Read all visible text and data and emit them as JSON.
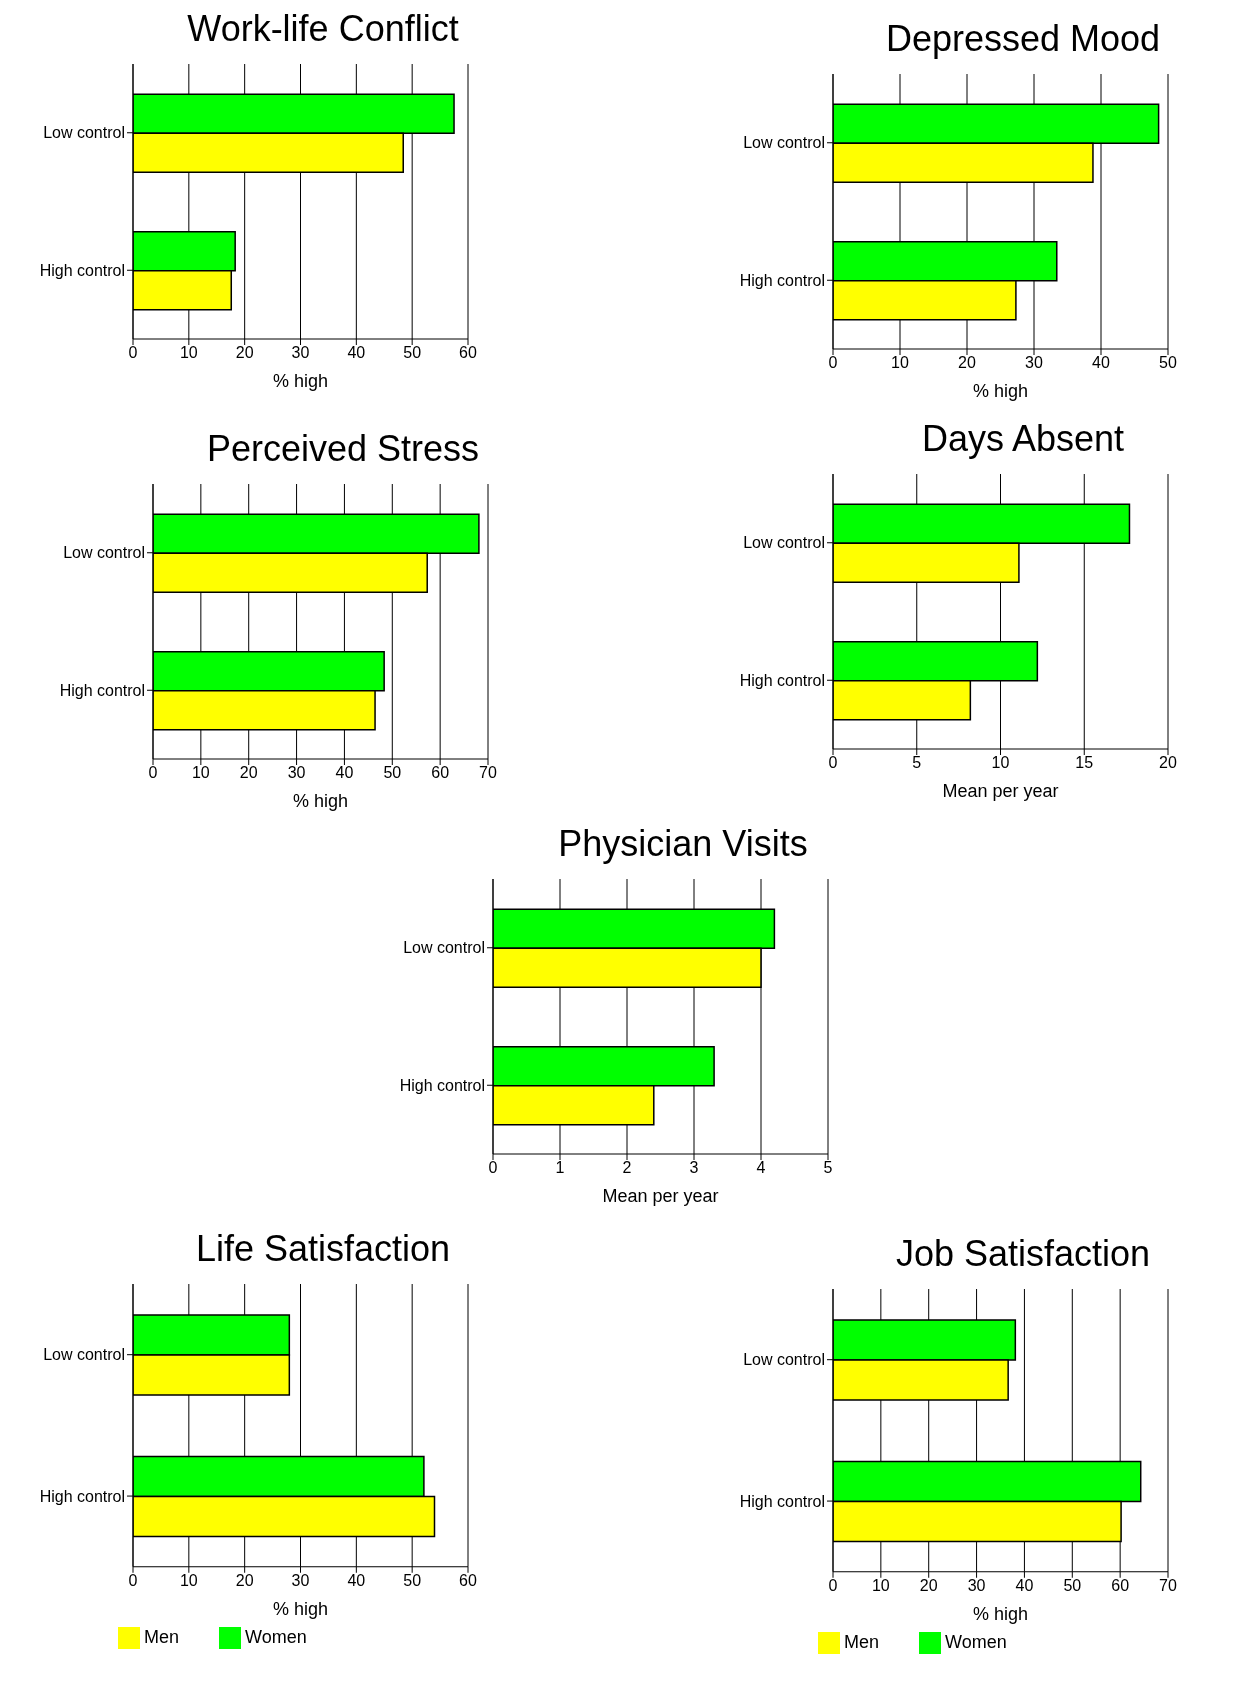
{
  "chart_data": [
    {
      "type": "bar",
      "orientation": "horizontal",
      "title": "Work-life Conflict",
      "categories": [
        "Low control",
        "High control"
      ],
      "series": [
        {
          "color": "#00ff00",
          "values": [
            57.5,
            18.3
          ]
        },
        {
          "color": "#ffff00",
          "values": [
            48.4,
            17.6
          ]
        }
      ],
      "xlabel": "% high",
      "xlim": [
        0,
        60
      ],
      "xticks": [
        0,
        10,
        20,
        30,
        40,
        50,
        60
      ],
      "grid": "x",
      "legend": false
    },
    {
      "type": "bar",
      "orientation": "horizontal",
      "title": "Depressed Mood",
      "categories": [
        "Low control",
        "High control"
      ],
      "series": [
        {
          "color": "#00ff00",
          "values": [
            48.6,
            33.4
          ]
        },
        {
          "color": "#ffff00",
          "values": [
            38.8,
            27.3
          ]
        }
      ],
      "xlabel": "% high",
      "xlim": [
        0,
        50
      ],
      "xticks": [
        0,
        10,
        20,
        30,
        40,
        50
      ],
      "grid": "x",
      "legend": false
    },
    {
      "type": "bar",
      "orientation": "horizontal",
      "title": "Perceived Stress",
      "categories": [
        "Low control",
        "High control"
      ],
      "series": [
        {
          "color": "#00ff00",
          "values": [
            68.1,
            48.3
          ]
        },
        {
          "color": "#ffff00",
          "values": [
            57.3,
            46.4
          ]
        }
      ],
      "xlabel": "% high",
      "xlim": [
        0,
        70
      ],
      "xticks": [
        0,
        10,
        20,
        30,
        40,
        50,
        60,
        70
      ],
      "grid": "x",
      "legend": false
    },
    {
      "type": "bar",
      "orientation": "horizontal",
      "title": "Days Absent",
      "categories": [
        "Low control",
        "High control"
      ],
      "series": [
        {
          "color": "#00ff00",
          "values": [
            17.7,
            12.2
          ]
        },
        {
          "color": "#ffff00",
          "values": [
            11.1,
            8.2
          ]
        }
      ],
      "xlabel": "Mean per year",
      "xlim": [
        0,
        20
      ],
      "xticks": [
        0,
        5,
        10,
        15,
        20
      ],
      "grid": "x",
      "legend": false
    },
    {
      "type": "bar",
      "orientation": "horizontal",
      "title": "Physician Visits",
      "categories": [
        "Low control",
        "High control"
      ],
      "series": [
        {
          "color": "#00ff00",
          "values": [
            4.2,
            3.3
          ]
        },
        {
          "color": "#ffff00",
          "values": [
            4.0,
            2.4
          ]
        }
      ],
      "xlabel": "Mean per year",
      "xlim": [
        0,
        5
      ],
      "xticks": [
        0,
        1,
        2,
        3,
        4,
        5
      ],
      "grid": "x",
      "legend": false
    },
    {
      "type": "bar",
      "orientation": "horizontal",
      "title": "Life Satisfaction",
      "categories": [
        "Low control",
        "High control"
      ],
      "series": [
        {
          "name": "Women",
          "color": "#00ff00",
          "values": [
            28,
            52.1
          ]
        },
        {
          "name": "Men",
          "color": "#ffff00",
          "values": [
            28,
            54
          ]
        }
      ],
      "xlabel": "% high",
      "xlim": [
        0,
        60
      ],
      "xticks": [
        0,
        10,
        20,
        30,
        40,
        50,
        60
      ],
      "grid": "x",
      "legend": "bottom left"
    },
    {
      "type": "bar",
      "orientation": "horizontal",
      "title": "Job Satisfaction",
      "categories": [
        "Low control",
        "High control"
      ],
      "series": [
        {
          "name": "Women",
          "color": "#00ff00",
          "values": [
            38.1,
            64.3
          ]
        },
        {
          "name": "Men",
          "color": "#ffff00",
          "values": [
            36.6,
            60.2
          ]
        }
      ],
      "xlabel": "% high",
      "xlim": [
        0,
        70
      ],
      "xticks": [
        0,
        10,
        20,
        30,
        40,
        50,
        60,
        70
      ],
      "grid": "x",
      "legend": "bottom left"
    }
  ]
}
